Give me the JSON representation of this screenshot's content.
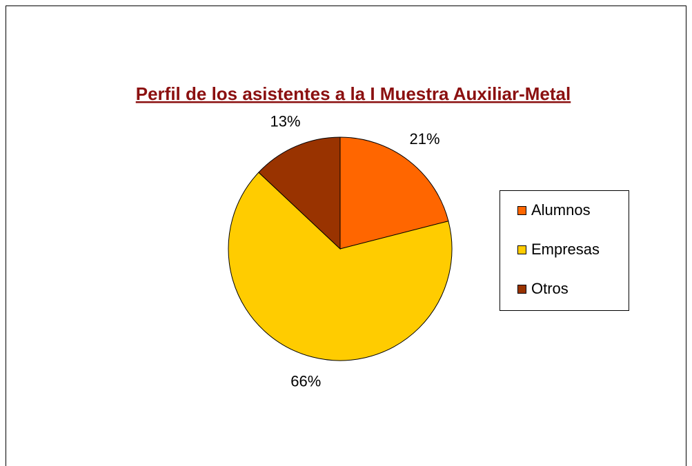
{
  "chart_data": {
    "type": "pie",
    "title": "Perfil de los asistentes a la I Muestra Auxiliar-Metal",
    "categories": [
      "Alumnos",
      "Empresas",
      "Otros"
    ],
    "values": [
      21,
      66,
      13
    ],
    "value_labels": [
      "21%",
      "66%",
      "13%"
    ],
    "colors": [
      "#ff6600",
      "#ffcc00",
      "#993300"
    ],
    "legend": "right"
  }
}
